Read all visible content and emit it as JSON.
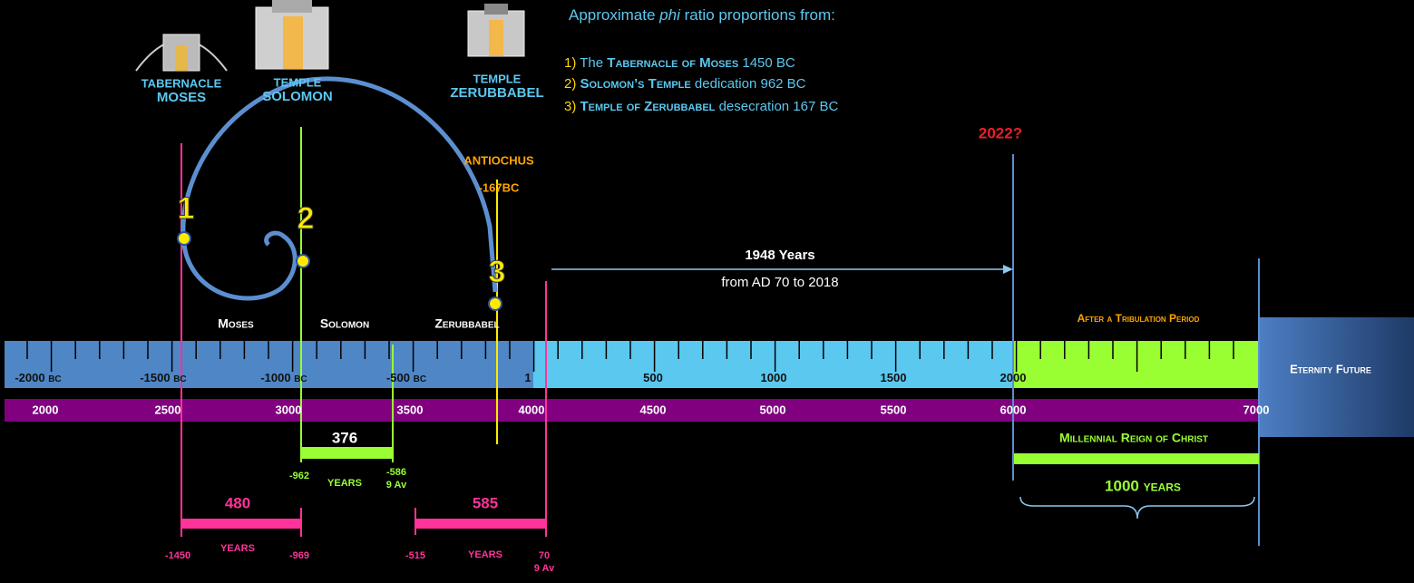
{
  "header": {
    "intro": "Approximate",
    "phi": "phi",
    "rest": "ratio proportions from:"
  },
  "list": [
    {
      "num": "1)",
      "pre": "The",
      "name": "Tabernacle of Moses",
      "post": "1450 BC"
    },
    {
      "num": "2)",
      "name": "Solomon’s Temple",
      "post": "dedication 962 BC"
    },
    {
      "num": "3)",
      "name": "Temple of Zerubbabel",
      "post": "desecration 167 BC"
    }
  ],
  "temples": [
    {
      "line1": "TABERNACLE",
      "line2": "MOSES"
    },
    {
      "line1": "TEMPLE",
      "line2": "SOLOMON"
    },
    {
      "line1": "TEMPLE",
      "line2": "ZERUBBABEL"
    }
  ],
  "spiral_points": [
    "1",
    "2",
    "3"
  ],
  "marker_2022": "2022?",
  "antiochus": {
    "name": "ANTIOCHUS",
    "date": "-167BC"
  },
  "span_1948": {
    "title": "1948 Years",
    "subtitle": "from AD 70 to 2018"
  },
  "eras": [
    "Moses",
    "Solomon",
    "Zerubbabel"
  ],
  "tribulation": "After a Tribulation Period",
  "calendar_axis": [
    {
      "year": "-2000",
      "era": "BC"
    },
    {
      "year": "-1500",
      "era": "BC"
    },
    {
      "year": "-1000",
      "era": "BC"
    },
    {
      "year": "-500",
      "era": "BC"
    },
    {
      "year": "1"
    },
    {
      "year": "500"
    },
    {
      "year": "1000"
    },
    {
      "year": "1500"
    },
    {
      "year": "2000"
    }
  ],
  "anno_mundi_axis": [
    "2000",
    "2500",
    "3000",
    "3500",
    "4000",
    "4500",
    "5000",
    "5500",
    "6000",
    "7000"
  ],
  "eternity": "Eternity Future",
  "span_376": {
    "value": "376",
    "unit": "YEARS",
    "start": "-962",
    "end": "-586",
    "end_note": "9 Av"
  },
  "millennium": {
    "title": "Millennial Reign of Christ",
    "span": "1000 years"
  },
  "span_480": {
    "value": "480",
    "unit": "YEARS",
    "start": "-1450",
    "end": "-969"
  },
  "span_585": {
    "value": "585",
    "unit": "YEARS",
    "start": "-515",
    "end": "70",
    "end_note": "9 Av"
  }
}
